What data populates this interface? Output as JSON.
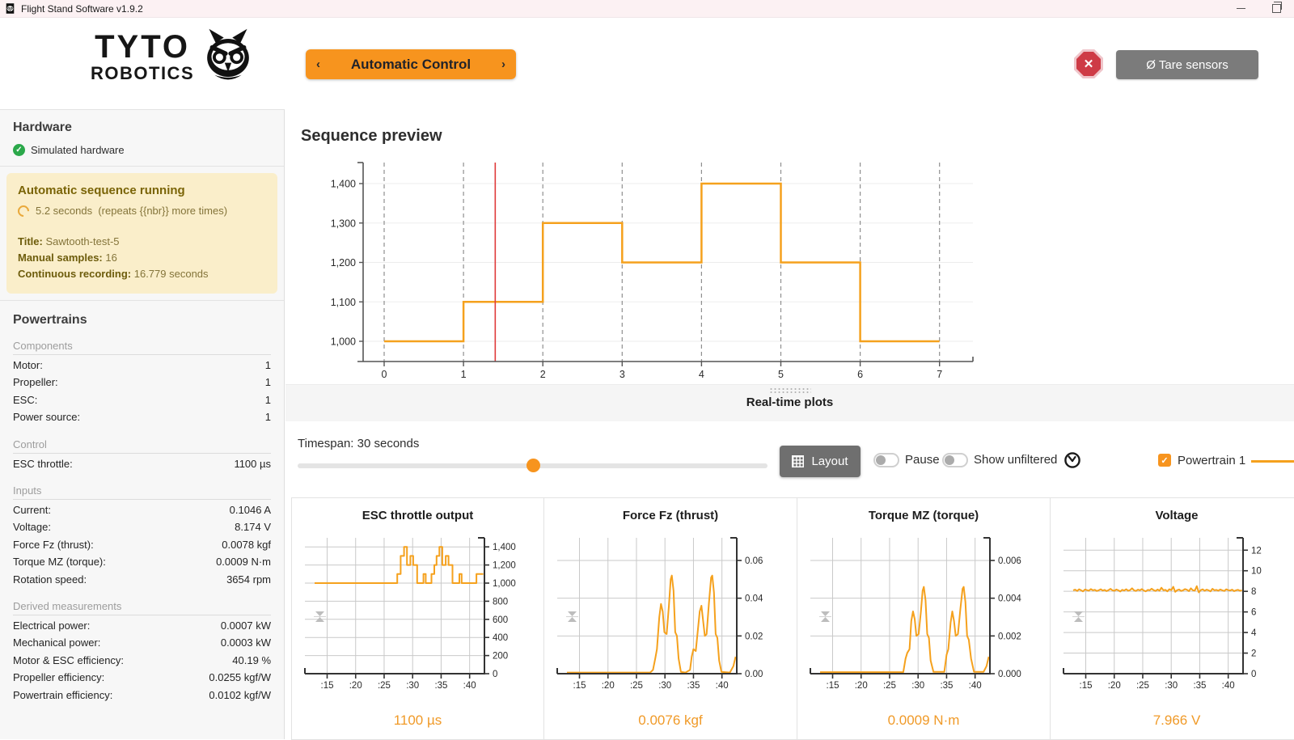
{
  "window": {
    "title": "Flight Stand Software v1.9.2"
  },
  "header": {
    "logo": {
      "line1": "TYTO",
      "line2": "ROBOTICS"
    },
    "mode_button": {
      "prev": "‹",
      "label": "Automatic Control",
      "next": "›"
    },
    "stop_button": {
      "symbol": "✕"
    },
    "tare_button": {
      "label": "Ø Tare sensors"
    }
  },
  "sidebar": {
    "hardware": {
      "title": "Hardware",
      "status": "Simulated hardware"
    },
    "sequence_notice": {
      "title": "Automatic sequence running",
      "elapsed": "5.2 seconds",
      "repeats": "(repeats {{nbr}} more times)",
      "rows": [
        {
          "label": "Title:",
          "value": "Sawtooth-test-5"
        },
        {
          "label": "Manual samples:",
          "value": "16"
        },
        {
          "label": "Continuous recording:",
          "value": "16.779 seconds"
        }
      ]
    },
    "powertrains": {
      "title": "Powertrains",
      "groups": [
        {
          "title": "Components",
          "rows": [
            [
              "Motor:",
              "1"
            ],
            [
              "Propeller:",
              "1"
            ],
            [
              "ESC:",
              "1"
            ],
            [
              "Power source:",
              "1"
            ]
          ]
        },
        {
          "title": "Control",
          "rows": [
            [
              "ESC throttle:",
              "1100 µs"
            ]
          ]
        },
        {
          "title": "Inputs",
          "rows": [
            [
              "Current:",
              "0.1046 A"
            ],
            [
              "Voltage:",
              "8.174 V"
            ],
            [
              "Force Fz (thrust):",
              "0.0078 kgf"
            ],
            [
              "Torque MZ (torque):",
              "0.0009 N·m"
            ],
            [
              "Rotation speed:",
              "3654 rpm"
            ]
          ]
        },
        {
          "title": "Derived measurements",
          "rows": [
            [
              "Electrical power:",
              "0.0007 kW"
            ],
            [
              "Mechanical power:",
              "0.0003 kW"
            ],
            [
              "Motor & ESC efficiency:",
              "40.19 %"
            ],
            [
              "Propeller efficiency:",
              "0.0255 kgf/W"
            ],
            [
              "Powertrain efficiency:",
              "0.0102 kgf/W"
            ]
          ]
        }
      ]
    }
  },
  "main": {
    "divider_title": "Real-time plots",
    "controls": {
      "timespan_label": "Timespan: 30 seconds",
      "slider_percent": 50,
      "layout_label": "Layout",
      "pause_label": "Pause",
      "show_unfiltered_label": "Show unfiltered",
      "powertrain_label": "Powertrain 1"
    }
  },
  "colors": {
    "accent_orange": "#f7941e",
    "chart_line_orange": "#f5a11d",
    "value_orange": "#f09a28",
    "cursor_red": "#e03a3a",
    "stop_red": "#ce3b46",
    "stop_ring": "#efc5ca",
    "tare_gray": "#7b7b7b",
    "layout_gray": "#6f6f6f",
    "notice_bg": "#faeeca",
    "notice_title": "#7a6407",
    "notice_text": "#84743a",
    "success_green": "#2ba84a",
    "titlebar_bg": "#fcf1f3"
  },
  "chart_data": [
    {
      "id": "sequence-preview",
      "type": "step",
      "title": "Sequence preview",
      "x_ticks": [
        0,
        1,
        2,
        3,
        4,
        5,
        6,
        7
      ],
      "y_ticks": [
        1000,
        1100,
        1200,
        1300,
        1400
      ],
      "y_tick_labels": [
        "1,000",
        "1,100",
        "1,200",
        "1,300",
        "1,400"
      ],
      "step_values": [
        1000,
        1100,
        1300,
        1200,
        1400,
        1200,
        1000
      ],
      "cursor_x": 1.4,
      "ylabel": "",
      "xlabel": "",
      "ylim": [
        950,
        1445
      ],
      "xlim": [
        0,
        7
      ]
    },
    {
      "id": "esc-throttle",
      "type": "step",
      "title": "ESC throttle output",
      "current_value": "1100 µs",
      "xlim": [
        12.8,
        42.6
      ],
      "x_ticks": [
        15,
        20,
        25,
        30,
        35,
        40
      ],
      "x_tick_labels": [
        ":15",
        ":20",
        ":25",
        ":30",
        ":35",
        ":40"
      ],
      "ylim": [
        0,
        1500
      ],
      "y_ticks": [
        0,
        200,
        400,
        600,
        800,
        1000,
        1200,
        1400
      ],
      "y_tick_labels": [
        "0",
        "200",
        "400",
        "600",
        "800",
        "1,000",
        "1,200",
        "1,400"
      ],
      "points": [
        [
          12.8,
          1000
        ],
        [
          27.3,
          1000
        ],
        [
          27.3,
          1100
        ],
        [
          27.9,
          1100
        ],
        [
          27.9,
          1300
        ],
        [
          28.5,
          1300
        ],
        [
          28.5,
          1400
        ],
        [
          29.0,
          1400
        ],
        [
          29.0,
          1200
        ],
        [
          29.6,
          1200
        ],
        [
          29.6,
          1300
        ],
        [
          30.1,
          1300
        ],
        [
          30.1,
          1200
        ],
        [
          30.8,
          1200
        ],
        [
          30.8,
          1000
        ],
        [
          31.9,
          1000
        ],
        [
          31.9,
          1100
        ],
        [
          32.3,
          1100
        ],
        [
          32.3,
          1000
        ],
        [
          33.3,
          1000
        ],
        [
          33.3,
          1100
        ],
        [
          33.8,
          1100
        ],
        [
          33.8,
          1200
        ],
        [
          34.2,
          1200
        ],
        [
          34.2,
          1300
        ],
        [
          34.7,
          1300
        ],
        [
          34.7,
          1400
        ],
        [
          35.2,
          1400
        ],
        [
          35.2,
          1200
        ],
        [
          35.8,
          1200
        ],
        [
          35.8,
          1300
        ],
        [
          36.3,
          1300
        ],
        [
          36.3,
          1200
        ],
        [
          37.0,
          1200
        ],
        [
          37.0,
          1000
        ],
        [
          38.2,
          1000
        ],
        [
          38.2,
          1100
        ],
        [
          38.6,
          1100
        ],
        [
          38.6,
          1000
        ],
        [
          41.2,
          1000
        ],
        [
          41.2,
          1100
        ],
        [
          42.4,
          1100
        ]
      ]
    },
    {
      "id": "force-fz",
      "type": "line",
      "title": "Force Fz (thrust)",
      "current_value": "0.0076 kgf",
      "xlim": [
        12.8,
        42.6
      ],
      "x_ticks": [
        15,
        20,
        25,
        30,
        35,
        40
      ],
      "x_tick_labels": [
        ":15",
        ":20",
        ":25",
        ":30",
        ":35",
        ":40"
      ],
      "ylim": [
        0,
        0.072
      ],
      "y_ticks": [
        0,
        0.02,
        0.04,
        0.06
      ],
      "y_tick_labels": [
        "0.00",
        "0.02",
        "0.04",
        "0.06"
      ],
      "points": [
        [
          12.8,
          0.0006
        ],
        [
          27.4,
          0.0006
        ],
        [
          27.9,
          0.002
        ],
        [
          28.3,
          0.008
        ],
        [
          28.6,
          0.013
        ],
        [
          29.0,
          0.03
        ],
        [
          29.3,
          0.037
        ],
        [
          29.6,
          0.033
        ],
        [
          29.9,
          0.022
        ],
        [
          30.3,
          0.021
        ],
        [
          30.7,
          0.036
        ],
        [
          31.0,
          0.05
        ],
        [
          31.2,
          0.052
        ],
        [
          31.5,
          0.044
        ],
        [
          31.8,
          0.022
        ],
        [
          32.1,
          0.02
        ],
        [
          32.4,
          0.008
        ],
        [
          32.8,
          0.001
        ],
        [
          33.6,
          0.0006
        ],
        [
          34.4,
          0.002
        ],
        [
          34.7,
          0.009
        ],
        [
          35.0,
          0.013
        ],
        [
          35.4,
          0.012
        ],
        [
          35.8,
          0.024
        ],
        [
          36.1,
          0.033
        ],
        [
          36.4,
          0.036
        ],
        [
          36.7,
          0.028
        ],
        [
          37.0,
          0.02
        ],
        [
          37.3,
          0.021
        ],
        [
          37.7,
          0.037
        ],
        [
          38.1,
          0.051
        ],
        [
          38.3,
          0.052
        ],
        [
          38.6,
          0.043
        ],
        [
          38.9,
          0.021
        ],
        [
          39.2,
          0.019
        ],
        [
          39.5,
          0.007
        ],
        [
          39.9,
          0.001
        ],
        [
          41.4,
          0.0006
        ],
        [
          42.0,
          0.004
        ],
        [
          42.4,
          0.009
        ]
      ]
    },
    {
      "id": "torque-mz",
      "type": "line",
      "title": "Torque MZ (torque)",
      "current_value": "0.0009 N·m",
      "xlim": [
        12.8,
        42.6
      ],
      "x_ticks": [
        15,
        20,
        25,
        30,
        35,
        40
      ],
      "x_tick_labels": [
        ":15",
        ":20",
        ":25",
        ":30",
        ":35",
        ":40"
      ],
      "ylim": [
        0,
        0.0072
      ],
      "y_ticks": [
        0,
        0.002,
        0.004,
        0.006
      ],
      "y_tick_labels": [
        "0.000",
        "0.002",
        "0.004",
        "0.006"
      ],
      "points": [
        [
          12.8,
          8e-05
        ],
        [
          27.4,
          8e-05
        ],
        [
          27.8,
          0.0008
        ],
        [
          28.1,
          0.0011
        ],
        [
          28.5,
          0.0013
        ],
        [
          28.8,
          0.0028
        ],
        [
          29.1,
          0.0033
        ],
        [
          29.4,
          0.0029
        ],
        [
          29.7,
          0.002
        ],
        [
          30.1,
          0.0021
        ],
        [
          30.5,
          0.0033
        ],
        [
          30.8,
          0.0044
        ],
        [
          31.0,
          0.0046
        ],
        [
          31.3,
          0.0039
        ],
        [
          31.6,
          0.0021
        ],
        [
          31.9,
          0.0019
        ],
        [
          32.2,
          0.0007
        ],
        [
          32.7,
          0.0001
        ],
        [
          34.6,
          0.0001
        ],
        [
          35.0,
          0.001
        ],
        [
          35.3,
          0.0013
        ],
        [
          35.7,
          0.0027
        ],
        [
          36.0,
          0.0033
        ],
        [
          36.3,
          0.0028
        ],
        [
          36.6,
          0.002
        ],
        [
          37.0,
          0.0021
        ],
        [
          37.4,
          0.0034
        ],
        [
          37.8,
          0.0045
        ],
        [
          38.0,
          0.0046
        ],
        [
          38.3,
          0.0038
        ],
        [
          38.6,
          0.002
        ],
        [
          38.9,
          0.0018
        ],
        [
          39.3,
          0.0008
        ],
        [
          39.8,
          0.0001
        ],
        [
          41.5,
          0.0001
        ],
        [
          42.0,
          0.0004
        ],
        [
          42.4,
          0.0009
        ]
      ]
    },
    {
      "id": "voltage",
      "type": "line",
      "title": "Voltage",
      "current_value": "7.966 V",
      "xlim": [
        12.8,
        42.6
      ],
      "x_ticks": [
        15,
        20,
        25,
        30,
        35,
        40
      ],
      "x_tick_labels": [
        ":15",
        ":20",
        ":25",
        ":30",
        ":35",
        ":40"
      ],
      "ylim": [
        0,
        13.2
      ],
      "y_ticks": [
        0,
        2,
        4,
        6,
        8,
        10,
        12
      ],
      "y_tick_labels": [
        "0",
        "2",
        "4",
        "6",
        "8",
        "10",
        "12"
      ],
      "x0": 12.8,
      "x1": 42.4,
      "values": [
        8.1,
        8.16,
        8.04,
        8.2,
        8.1,
        8.0,
        8.18,
        8.12,
        8.06,
        8.22,
        8.1,
        8.15,
        8.04,
        8.1,
        8.2,
        8.08,
        8.14,
        8.02,
        8.12,
        8.24,
        8.1,
        8.05,
        8.18,
        8.1,
        7.98,
        8.15,
        8.08,
        8.2,
        8.06,
        8.12,
        8.3,
        8.1,
        8.04,
        8.16,
        8.1,
        8.22,
        8.08,
        8.0,
        8.14,
        8.1,
        8.26,
        8.12,
        8.04,
        8.18,
        8.06,
        8.35,
        8.1,
        8.15,
        8.0,
        8.2,
        8.12,
        8.45,
        7.95,
        8.12,
        8.18,
        8.04,
        8.1,
        8.22,
        8.15,
        8.02,
        8.3,
        8.1,
        8.08,
        8.5,
        7.9,
        8.12,
        8.2,
        8.05,
        8.16,
        8.1,
        8.0,
        8.25,
        8.1,
        8.14,
        8.06,
        8.18,
        8.1,
        8.04,
        8.2,
        8.12,
        8.08,
        8.16,
        8.02,
        8.1,
        8.15,
        8.05,
        8.1
      ]
    }
  ]
}
